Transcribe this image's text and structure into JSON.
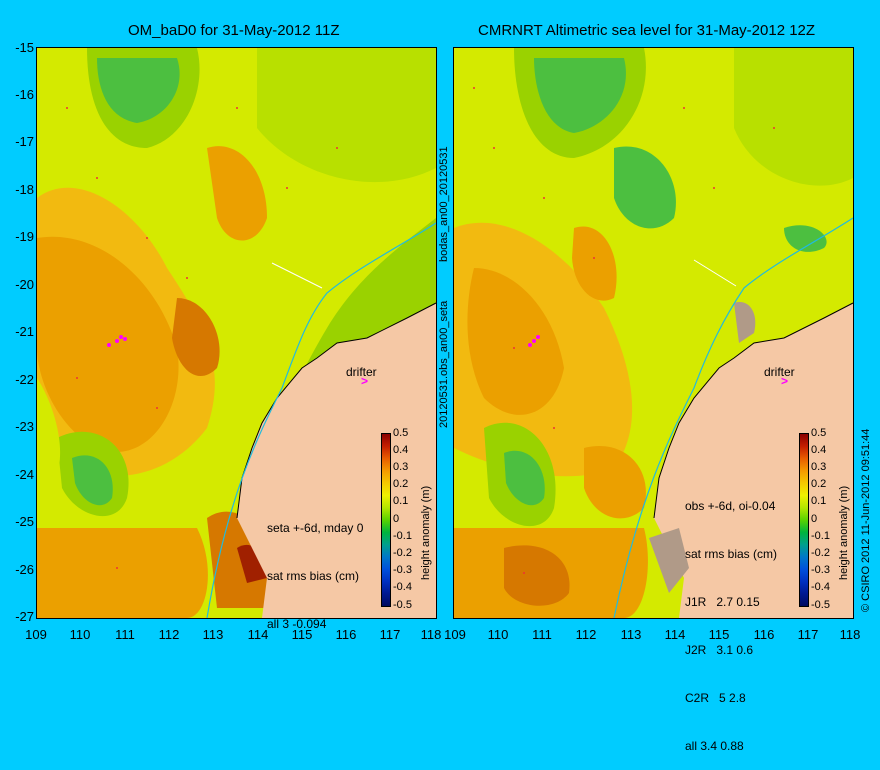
{
  "left_panel": {
    "title": "OM_baD0 for 31-May-2012 11Z",
    "info_lines": [
      "seta +-6d, mday 0",
      "sat rms bias (cm)",
      "all 3 -0.094"
    ],
    "drifter_label": "drifter"
  },
  "right_panel": {
    "title": "CMRNRT Altimetric sea level  for 31-May-2012 12Z",
    "info_lines": [
      "obs +-6d, oi-0.04",
      "sat rms bias (cm)",
      "J1R   2.7 0.15",
      "J2R   3.1 0.6",
      "C2R   5 2.8",
      "all 3.4 0.88"
    ],
    "drifter_label": "drifter"
  },
  "y_axis_ticks": [
    "-15",
    "-16",
    "-17",
    "-18",
    "-19",
    "-20",
    "-21",
    "-22",
    "-23",
    "-24",
    "-25",
    "-26",
    "-27"
  ],
  "x_axis_ticks_left": [
    "109",
    "110",
    "111",
    "112",
    "113",
    "114",
    "115",
    "116",
    "117",
    "118"
  ],
  "x_axis_ticks_right": [
    "109",
    "110",
    "111",
    "112",
    "113",
    "114",
    "115",
    "116",
    "117",
    "118"
  ],
  "vertical_label_1": "bodas_an00_20120531",
  "vertical_label_2": "20120531.obs_an00_seta",
  "colorbar": {
    "labels": [
      "0.5",
      "0.4",
      "0.3",
      "0.2",
      "0.1",
      "0",
      "-0.1",
      "-0.2",
      "-0.3",
      "-0.4",
      "-0.5"
    ],
    "unit_label": "height anomaly (m)"
  },
  "credit": "© CSIRO 2012  11-Jun-2012 09:51:44",
  "colors": {
    "background": "#00ccff",
    "land": "#f5c8a5",
    "drifter": "#ff00ff",
    "coast_track": "#22bbdd"
  }
}
